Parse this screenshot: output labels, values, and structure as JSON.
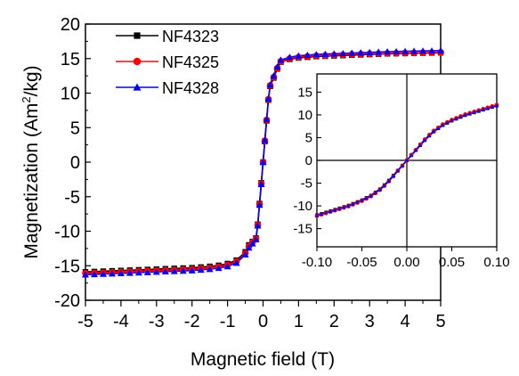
{
  "chart_data": [
    {
      "type": "line",
      "role": "main",
      "xlabel": "Magnetic field (T)",
      "ylabel": "Magnetization (Am²/kg)",
      "ylabel_parts": [
        "Magnetization (Am",
        "2",
        "/kg)"
      ],
      "xlim": [
        -5,
        5
      ],
      "ylim": [
        -20,
        20
      ],
      "xticks": [
        -5,
        -4,
        -3,
        -2,
        -1,
        0,
        1,
        2,
        3,
        4,
        5
      ],
      "xtick_labels": [
        "-5",
        "-4",
        "-3",
        "-2",
        "-1",
        "0",
        "1",
        "2",
        "3",
        "4",
        "5"
      ],
      "yticks": [
        -20,
        -15,
        -10,
        -5,
        0,
        5,
        10,
        15,
        20
      ],
      "ytick_labels": [
        "-20",
        "-15",
        "-10",
        "-5",
        "0",
        "5",
        "10",
        "15",
        "20"
      ],
      "grid": false,
      "legend": "top-left",
      "x": [
        -5.0,
        -4.75,
        -4.5,
        -4.25,
        -4.0,
        -3.75,
        -3.5,
        -3.25,
        -3.0,
        -2.75,
        -2.5,
        -2.25,
        -2.0,
        -1.75,
        -1.5,
        -1.25,
        -1.0,
        -0.75,
        -0.5,
        -0.4,
        -0.3,
        -0.2,
        -0.15,
        -0.1,
        -0.05,
        0.0,
        0.05,
        0.1,
        0.15,
        0.2,
        0.3,
        0.4,
        0.5,
        0.75,
        1.0,
        1.25,
        1.5,
        1.75,
        2.0,
        2.25,
        2.5,
        2.75,
        3.0,
        3.25,
        3.5,
        3.75,
        4.0,
        4.25,
        4.5,
        4.75,
        5.0
      ],
      "series": [
        {
          "name": "NF4323",
          "marker": "square",
          "color": "#000000",
          "values": [
            -15.9,
            -15.85,
            -15.8,
            -15.75,
            -15.7,
            -15.65,
            -15.6,
            -15.55,
            -15.5,
            -15.45,
            -15.4,
            -15.35,
            -15.3,
            -15.2,
            -15.1,
            -14.95,
            -14.7,
            -14.2,
            -13.0,
            -12.0,
            -11.5,
            -11.0,
            -9.0,
            -6.0,
            -3.0,
            0.0,
            3.0,
            6.0,
            9.0,
            11.0,
            12.2,
            13.5,
            14.5,
            14.9,
            15.1,
            15.2,
            15.3,
            15.35,
            15.4,
            15.45,
            15.5,
            15.55,
            15.6,
            15.65,
            15.7,
            15.72,
            15.75,
            15.78,
            15.8,
            15.82,
            15.85
          ]
        },
        {
          "name": "NF4325",
          "marker": "circle",
          "color": "#ff0000",
          "values": [
            -16.1,
            -16.05,
            -16.0,
            -15.95,
            -15.9,
            -15.85,
            -15.8,
            -15.75,
            -15.7,
            -15.65,
            -15.6,
            -15.55,
            -15.5,
            -15.4,
            -15.3,
            -15.15,
            -14.9,
            -14.4,
            -13.2,
            -12.2,
            -11.6,
            -11.1,
            -9.1,
            -6.1,
            -3.1,
            0.0,
            3.1,
            6.1,
            9.1,
            11.1,
            12.3,
            13.6,
            14.6,
            15.0,
            15.2,
            15.3,
            15.4,
            15.45,
            15.5,
            15.55,
            15.6,
            15.65,
            15.7,
            15.72,
            15.75,
            15.78,
            15.8,
            15.82,
            15.85,
            15.87,
            15.9
          ]
        },
        {
          "name": "NF4328",
          "marker": "triangle",
          "color": "#0000ff",
          "values": [
            -16.3,
            -16.25,
            -16.2,
            -16.15,
            -16.1,
            -16.05,
            -16.0,
            -15.95,
            -15.9,
            -15.85,
            -15.8,
            -15.75,
            -15.7,
            -15.6,
            -15.5,
            -15.35,
            -15.1,
            -14.6,
            -13.4,
            -12.4,
            -11.8,
            -11.2,
            -9.2,
            -6.2,
            -3.2,
            0.0,
            3.2,
            6.2,
            9.2,
            11.2,
            12.5,
            13.8,
            14.8,
            15.2,
            15.4,
            15.5,
            15.6,
            15.65,
            15.7,
            15.75,
            15.8,
            15.85,
            15.9,
            15.95,
            16.0,
            16.02,
            16.05,
            16.08,
            16.1,
            16.12,
            16.15
          ]
        }
      ]
    },
    {
      "type": "line",
      "role": "inset",
      "xlim": [
        -0.1,
        0.1
      ],
      "ylim": [
        -19,
        19
      ],
      "xticks": [
        -0.1,
        -0.05,
        0.0,
        0.05,
        0.1
      ],
      "xtick_labels": [
        "-0.10",
        "-0.05",
        "0.00",
        "0.05",
        "0.10"
      ],
      "yticks": [
        -15,
        -10,
        -5,
        0,
        5,
        10,
        15
      ],
      "ytick_labels": [
        "-15",
        "-10",
        "-5",
        "0",
        "5",
        "10",
        "15"
      ],
      "grid": false,
      "x": [
        -0.1,
        -0.095,
        -0.09,
        -0.085,
        -0.08,
        -0.075,
        -0.07,
        -0.065,
        -0.06,
        -0.055,
        -0.05,
        -0.045,
        -0.04,
        -0.035,
        -0.03,
        -0.025,
        -0.02,
        -0.015,
        -0.01,
        -0.005,
        0.0,
        0.005,
        0.01,
        0.015,
        0.02,
        0.025,
        0.03,
        0.035,
        0.04,
        0.045,
        0.05,
        0.055,
        0.06,
        0.065,
        0.07,
        0.075,
        0.08,
        0.085,
        0.09,
        0.095,
        0.1
      ],
      "series": [
        {
          "name": "NF4323",
          "marker": "square",
          "color": "#000000",
          "values": [
            -12.0,
            -11.7,
            -11.4,
            -11.1,
            -10.8,
            -10.5,
            -10.2,
            -9.9,
            -9.5,
            -9.1,
            -8.7,
            -8.2,
            -7.7,
            -7.0,
            -6.3,
            -5.4,
            -4.4,
            -3.3,
            -2.2,
            -1.1,
            0.0,
            1.1,
            2.2,
            3.3,
            4.4,
            5.4,
            6.3,
            7.0,
            7.7,
            8.2,
            8.7,
            9.1,
            9.5,
            9.9,
            10.2,
            10.5,
            10.8,
            11.1,
            11.4,
            11.7,
            12.0
          ]
        },
        {
          "name": "NF4325",
          "marker": "circle",
          "color": "#ff0000",
          "values": [
            -12.2,
            -11.9,
            -11.6,
            -11.3,
            -11.0,
            -10.7,
            -10.4,
            -10.1,
            -9.7,
            -9.3,
            -8.9,
            -8.4,
            -7.9,
            -7.2,
            -6.5,
            -5.6,
            -4.6,
            -3.5,
            -2.3,
            -1.2,
            0.0,
            1.2,
            2.3,
            3.5,
            4.6,
            5.6,
            6.5,
            7.2,
            7.9,
            8.4,
            8.9,
            9.3,
            9.7,
            10.1,
            10.4,
            10.7,
            11.0,
            11.3,
            11.6,
            11.9,
            12.2
          ]
        },
        {
          "name": "NF4328",
          "marker": "triangle",
          "color": "#0000ff",
          "values": [
            -12.1,
            -11.8,
            -11.5,
            -11.2,
            -10.9,
            -10.6,
            -10.3,
            -10.0,
            -9.6,
            -9.2,
            -8.8,
            -8.3,
            -7.8,
            -7.1,
            -6.4,
            -5.5,
            -4.5,
            -3.4,
            -2.25,
            -1.15,
            0.0,
            1.15,
            2.25,
            3.4,
            4.5,
            5.5,
            6.4,
            7.1,
            7.8,
            8.3,
            8.8,
            9.2,
            9.6,
            10.0,
            10.3,
            10.6,
            10.9,
            11.2,
            11.5,
            11.8,
            12.1
          ]
        }
      ]
    }
  ]
}
